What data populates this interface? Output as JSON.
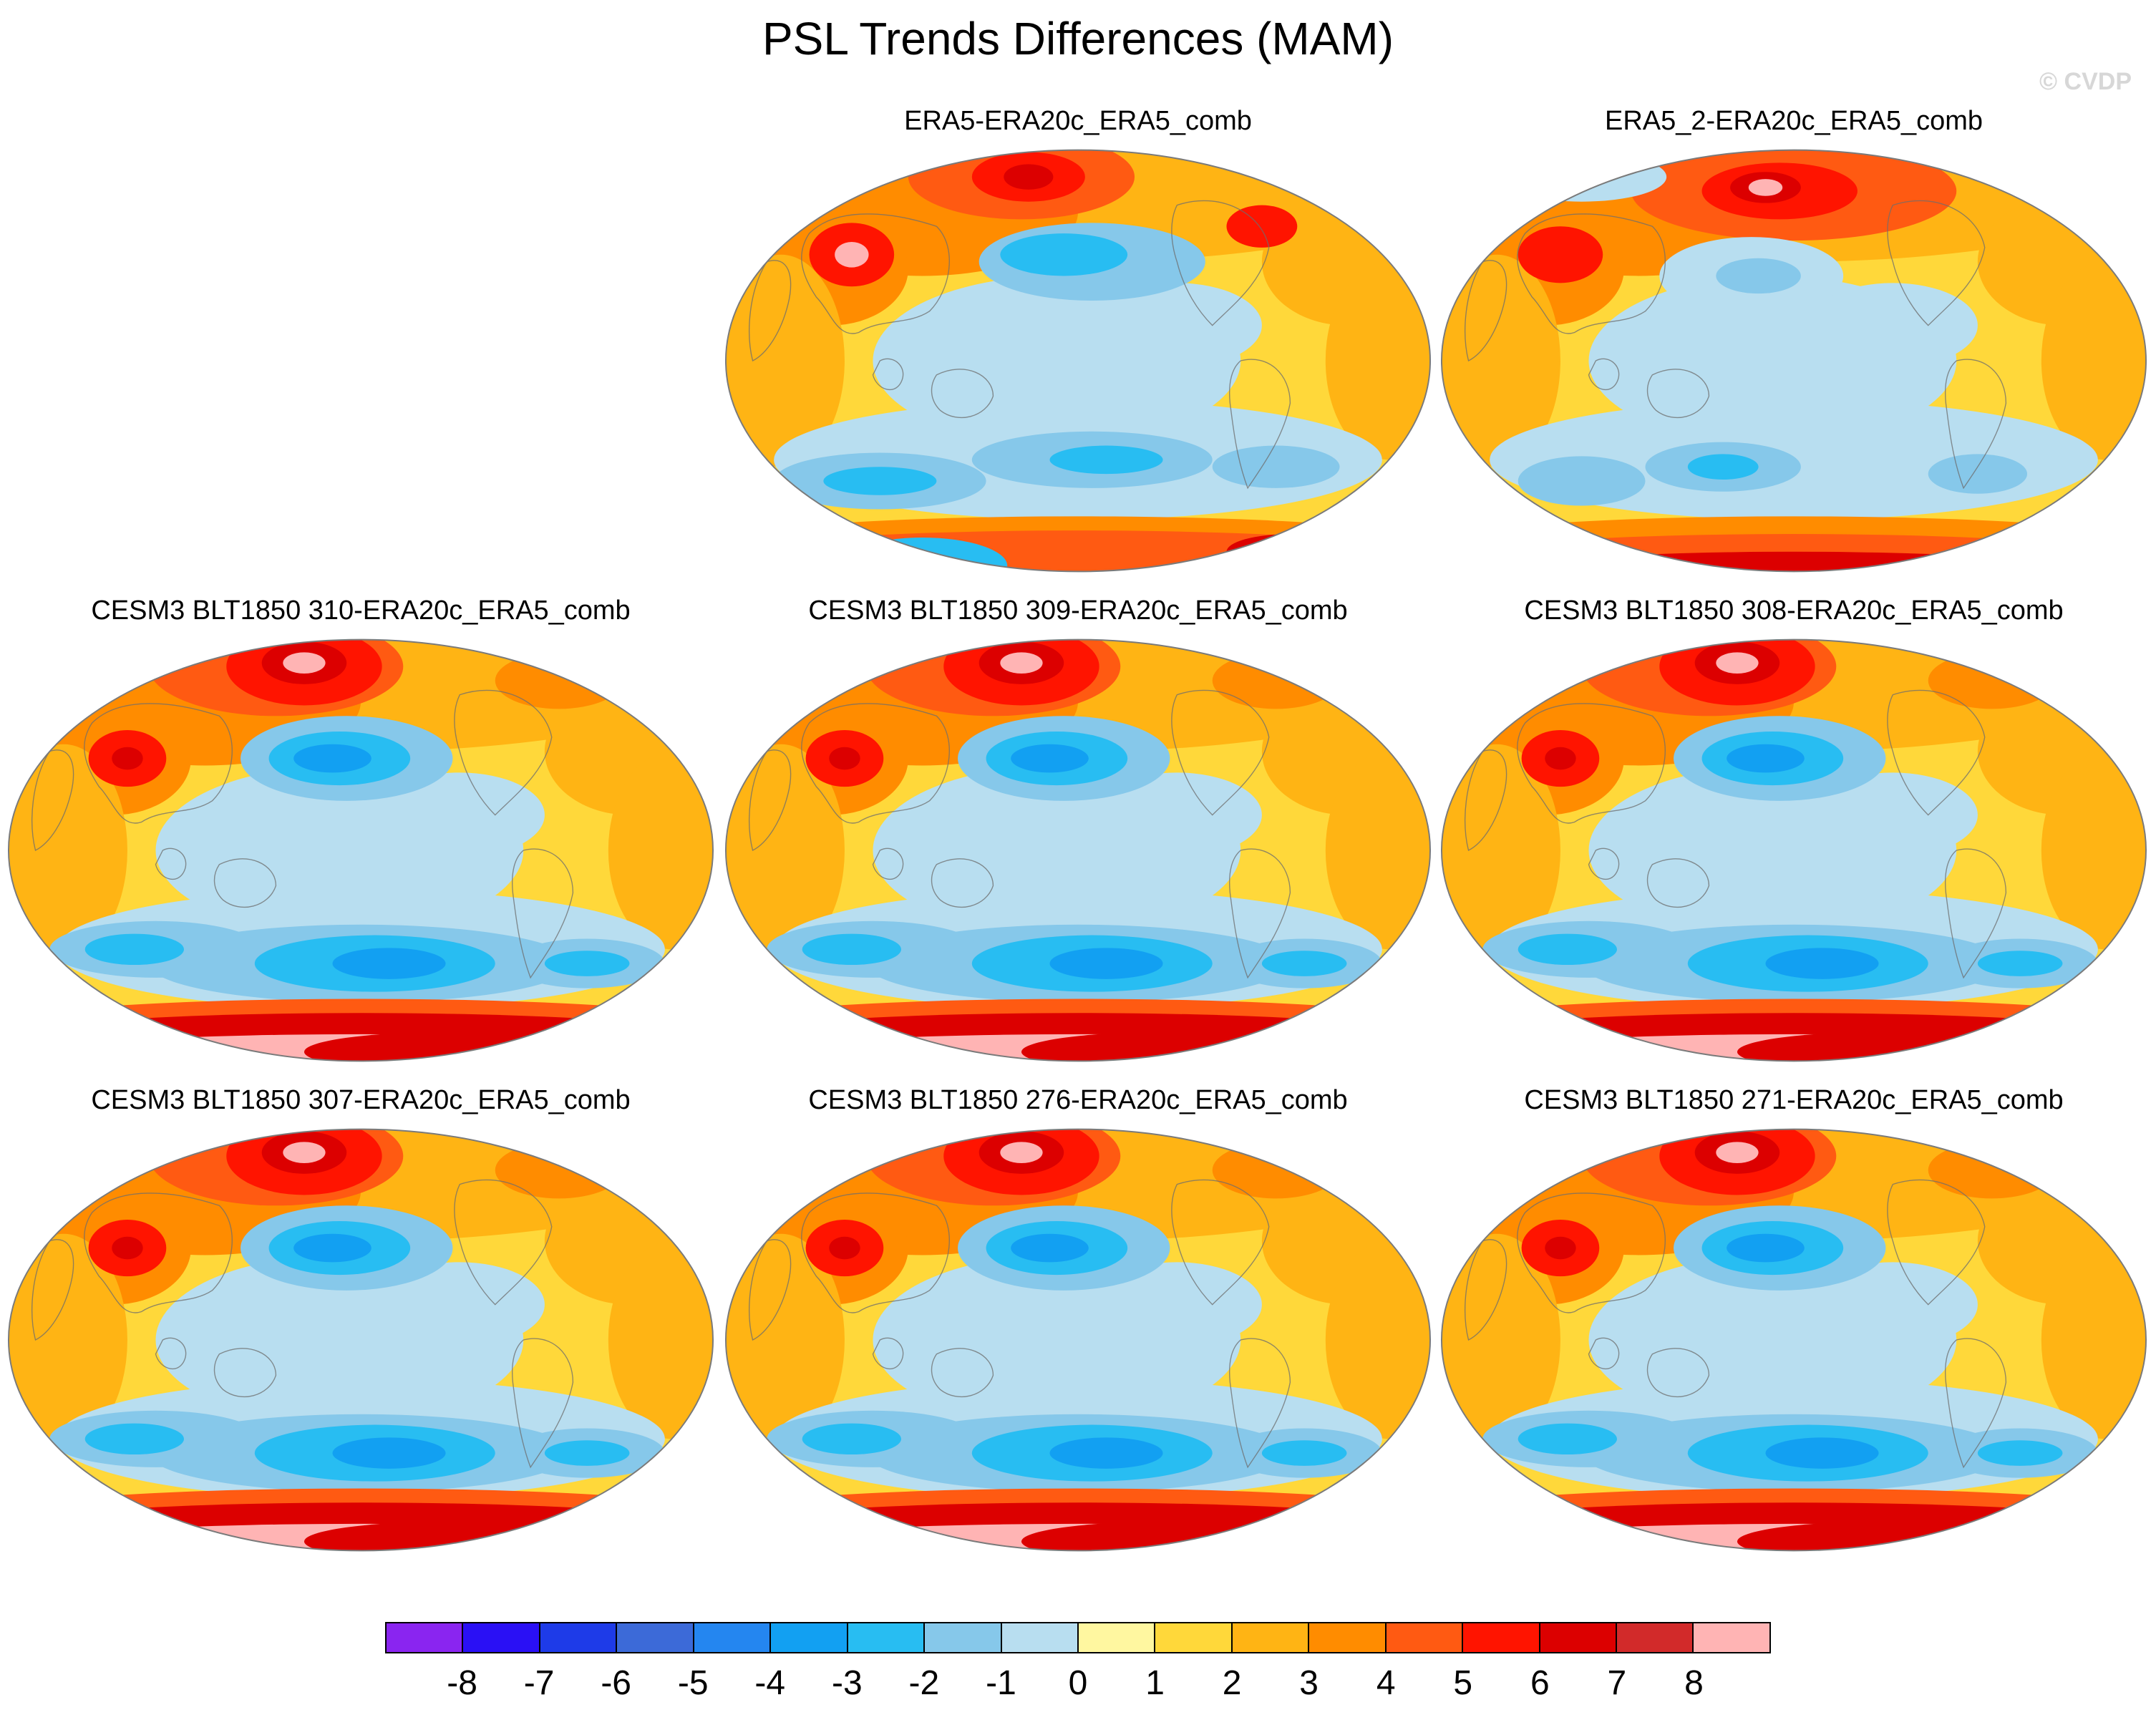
{
  "figure": {
    "title": "PSL Trends Differences (MAM)",
    "watermark": "© CVDP"
  },
  "panels": [
    {
      "title": "ERA5-ERA20c_ERA5_comb"
    },
    {
      "title": "ERA5_2-ERA20c_ERA5_comb"
    },
    {
      "title": "CESM3 BLT1850 310-ERA20c_ERA5_comb"
    },
    {
      "title": "CESM3 BLT1850 309-ERA20c_ERA5_comb"
    },
    {
      "title": "CESM3 BLT1850 308-ERA20c_ERA5_comb"
    },
    {
      "title": "CESM3 BLT1850 307-ERA20c_ERA5_comb"
    },
    {
      "title": "CESM3 BLT1850 276-ERA20c_ERA5_comb"
    },
    {
      "title": "CESM3 BLT1850 271-ERA20c_ERA5_comb"
    }
  ],
  "colorbar": {
    "labels": [
      "-8",
      "-7",
      "-6",
      "-5",
      "-4",
      "-3",
      "-2",
      "-1",
      "0",
      "1",
      "2",
      "3",
      "4",
      "5",
      "6",
      "7",
      "8"
    ],
    "colors": [
      "#8a25f0",
      "#2a10f5",
      "#1e3be8",
      "#3c6ad8",
      "#2486f0",
      "#12a0f2",
      "#28bdf2",
      "#86c8ea",
      "#b8def0",
      "#fff7a0",
      "#ffd83a",
      "#ffb414",
      "#ff8c00",
      "#ff5a12",
      "#ff1400",
      "#dc0000",
      "#d22a2a",
      "#ffb4b4"
    ]
  }
}
